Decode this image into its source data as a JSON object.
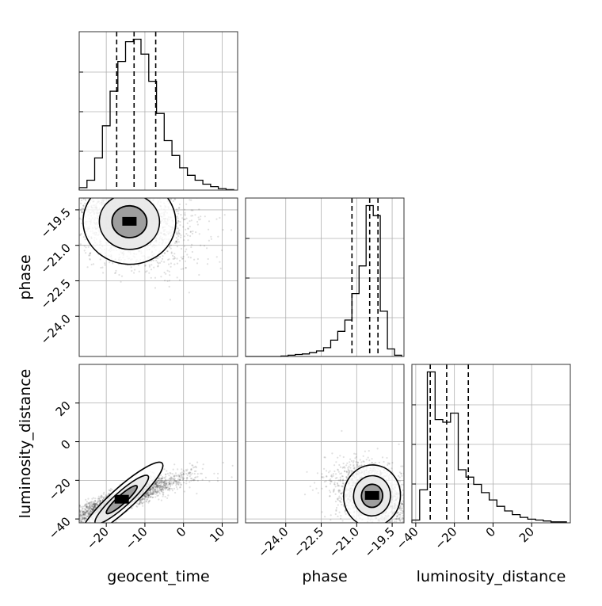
{
  "chart_data": {
    "type": "corner",
    "parameters": [
      "geocent_time",
      "phase",
      "luminosity_distance"
    ],
    "ranges": {
      "geocent_time": [
        -27,
        14
      ],
      "phase": [
        -25.7,
        -19.0
      ],
      "luminosity_distance": [
        -42,
        40
      ]
    },
    "ticks": {
      "geocent_time": [
        -20,
        -10,
        0,
        10
      ],
      "phase": [
        -24.0,
        -22.5,
        -21.0,
        -19.5
      ],
      "luminosity_distance": [
        -40,
        -20,
        0,
        20
      ]
    },
    "tick_labels": {
      "geocent_time": [
        "−20",
        "−10",
        "0",
        "10"
      ],
      "phase": [
        "−24.0",
        "−22.5",
        "−21.0",
        "−19.5"
      ],
      "luminosity_distance": [
        "−40",
        "−20",
        "0",
        "20"
      ]
    },
    "quantiles": {
      "geocent_time": [
        -17.3,
        -12.8,
        -7.2
      ],
      "phase": [
        -21.2,
        -20.45,
        -20.1
      ],
      "luminosity_distance": [
        -32.5,
        -24.0,
        -12.8
      ]
    },
    "histograms": {
      "geocent_time": {
        "edges": [
          -27,
          -25,
          -23,
          -21,
          -19,
          -17,
          -15,
          -13,
          -11,
          -9,
          -7,
          -5,
          -3,
          -1,
          1,
          3,
          5,
          7,
          9,
          11,
          13
        ],
        "counts": [
          0.5,
          2,
          6.5,
          13,
          20,
          26,
          30,
          30.5,
          27.5,
          22,
          15.5,
          10,
          7,
          4.5,
          3,
          2,
          1.2,
          0.7,
          0.3,
          0.1
        ]
      },
      "phase": {
        "edges": [
          -25.7,
          -25.4,
          -25.1,
          -24.8,
          -24.5,
          -24.2,
          -23.9,
          -23.6,
          -23.3,
          -23.0,
          -22.7,
          -22.4,
          -22.1,
          -21.8,
          -21.5,
          -21.2,
          -20.9,
          -20.6,
          -20.3,
          -20.0,
          -19.7,
          -19.4,
          -19.1
        ],
        "counts": [
          0,
          0,
          0,
          0,
          0,
          0.2,
          0.5,
          0.8,
          1,
          1.5,
          2.2,
          3.5,
          6.5,
          10,
          14.5,
          25,
          36,
          60,
          56,
          18,
          3,
          0.5
        ]
      },
      "luminosity_distance": {
        "edges": [
          -42,
          -38,
          -34,
          -30,
          -26,
          -22,
          -18,
          -14,
          -10,
          -6,
          -2,
          2,
          6,
          10,
          14,
          18,
          22,
          26,
          30,
          34,
          38
        ],
        "counts": [
          0.3,
          3.6,
          16.5,
          11.3,
          11,
          12,
          5.8,
          5,
          4.2,
          3.3,
          2.5,
          1.8,
          1.3,
          0.9,
          0.6,
          0.4,
          0.3,
          0.2,
          0.1,
          0.1
        ]
      }
    },
    "posterior_peaks": {
      "geocent_time_vs_phase": {
        "x": -14,
        "y": -20.0,
        "sx": 6,
        "sy": 0.9,
        "rho": -0.25
      },
      "geocent_time_vs_luminosity_distance": {
        "x": -16,
        "y": -30,
        "sx": 6,
        "sy": 6,
        "rho": 0.9
      },
      "phase_vs_luminosity_distance": {
        "x": -20.35,
        "y": -28,
        "sx": 0.6,
        "sy": 8,
        "rho": -0.35
      }
    },
    "grid": true,
    "title": "",
    "xlabel": "",
    "ylabel": ""
  }
}
